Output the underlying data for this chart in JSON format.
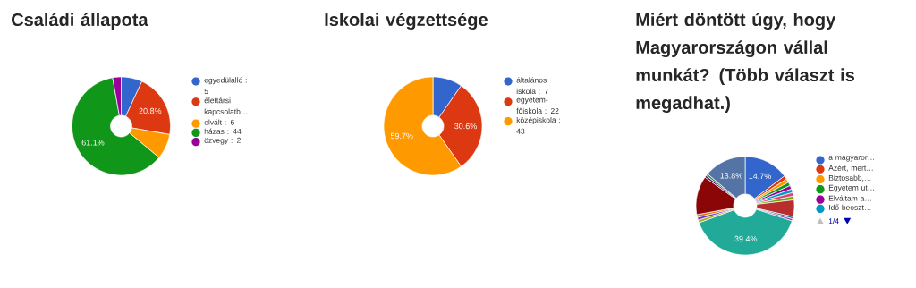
{
  "chart_data": [
    {
      "type": "donut",
      "title": "Családi állapota",
      "categories": [
        "egyedülálló : 5",
        "élettársi kapcsolatb…",
        "elvált : 6",
        "házas : 44",
        "özvegy : 2"
      ],
      "values": [
        6.9,
        20.8,
        8.3,
        61.1,
        2.8
      ],
      "colors": [
        "#3366cc",
        "#dc3912",
        "#ff9900",
        "#109618",
        "#990099"
      ],
      "value_labels": [
        null,
        "20.8%",
        null,
        "61.1%",
        null
      ],
      "legend": "right"
    },
    {
      "type": "donut",
      "title": "Iskolai végzettsége",
      "categories": [
        "általános iskola : 7",
        "egyetem-főiskola : 22",
        "középiskola : 43"
      ],
      "values": [
        9.7,
        30.6,
        59.7
      ],
      "colors": [
        "#3366cc",
        "#dc3912",
        "#ff9900"
      ],
      "value_labels": [
        null,
        "30.6%",
        "59.7%"
      ],
      "legend": "right"
    },
    {
      "type": "donut",
      "title": "Miért döntött úgy, hogy Magyarországon vállal munkát? (Több választ is megadhat.)",
      "categories": [
        "a magyaror…",
        "Azért, mert…",
        "Biztosabb,…",
        "Egyetem ut…",
        "Elváltam a…",
        "Idő beoszt…",
        null,
        null,
        null,
        null,
        null,
        null,
        null,
        null,
        null,
        null,
        null,
        null,
        null
      ],
      "values": [
        14.7,
        1.2,
        1.2,
        1.2,
        1.2,
        1.2,
        1.2,
        1.2,
        5.5,
        0.7,
        0.7,
        39.4,
        0.9,
        0.9,
        0.9,
        12.7,
        0.7,
        0.7,
        13.8
      ],
      "colors": [
        "#3366cc",
        "#dc3912",
        "#ff9900",
        "#109618",
        "#990099",
        "#0099c6",
        "#dd4477",
        "#66aa00",
        "#b82e2e",
        "#316395",
        "#994499",
        "#22aa99",
        "#aaaa11",
        "#6633cc",
        "#e67300",
        "#8b0707",
        "#651067",
        "#329262",
        "#5574a6"
      ],
      "value_labels": [
        "14.7%",
        null,
        null,
        null,
        null,
        null,
        null,
        null,
        null,
        null,
        null,
        "39.4%",
        null,
        null,
        null,
        null,
        null,
        null,
        "13.8%"
      ],
      "legend": "right",
      "annotations": [
        "1/4"
      ]
    }
  ]
}
